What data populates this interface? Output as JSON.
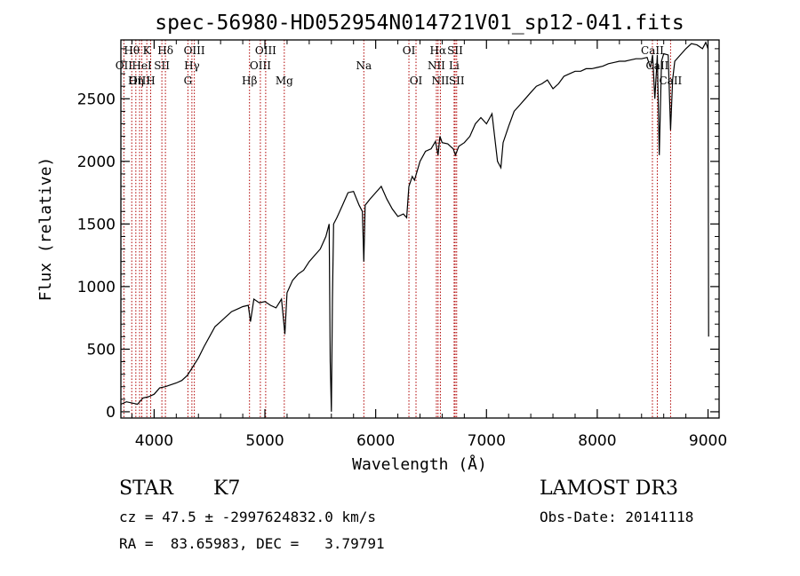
{
  "chart_data": {
    "type": "line",
    "title": "spec-56980-HD052954N014721V01_sp12-041.fits",
    "xlabel": "Wavelength (Å)",
    "ylabel": "Flux (relative)",
    "xlim": [
      3700,
      9100
    ],
    "ylim": [
      -50,
      2970
    ],
    "x_ticks": [
      4000,
      5000,
      6000,
      7000,
      8000,
      9000
    ],
    "y_ticks": [
      0,
      500,
      1000,
      1500,
      2000,
      2500
    ],
    "grid": false,
    "series": [
      {
        "x": [
          3700,
          3750,
          3800,
          3850,
          3900,
          3950,
          4000,
          4050,
          4100,
          4150,
          4200,
          4250,
          4300,
          4350,
          4400,
          4450,
          4500,
          4550,
          4600,
          4650,
          4700,
          4750,
          4800,
          4850,
          4870,
          4900,
          4950,
          5000,
          5050,
          5100,
          5150,
          5180,
          5200,
          5250,
          5300,
          5350,
          5400,
          5450,
          5500,
          5550,
          5580,
          5590,
          5600,
          5610,
          5620,
          5650,
          5700,
          5750,
          5800,
          5850,
          5880,
          5893,
          5905,
          5950,
          6000,
          6050,
          6100,
          6150,
          6200,
          6250,
          6280,
          6300,
          6330,
          6350,
          6400,
          6450,
          6500,
          6540,
          6563,
          6580,
          6600,
          6650,
          6700,
          6720,
          6750,
          6800,
          6850,
          6900,
          6950,
          7000,
          7050,
          7100,
          7130,
          7150,
          7200,
          7250,
          7300,
          7350,
          7400,
          7450,
          7500,
          7550,
          7600,
          7650,
          7700,
          7750,
          7800,
          7850,
          7900,
          7950,
          8000,
          8050,
          8100,
          8150,
          8200,
          8250,
          8300,
          8350,
          8400,
          8450,
          8480,
          8500,
          8520,
          8542,
          8560,
          8580,
          8600,
          8640,
          8662,
          8680,
          8700,
          8750,
          8800,
          8850,
          8900,
          8950,
          8980,
          9000,
          9005
        ],
        "y": [
          60,
          80,
          70,
          60,
          110,
          120,
          140,
          190,
          200,
          215,
          230,
          250,
          290,
          360,
          430,
          520,
          600,
          680,
          720,
          760,
          800,
          820,
          840,
          850,
          720,
          900,
          870,
          880,
          850,
          830,
          900,
          620,
          950,
          1050,
          1100,
          1130,
          1200,
          1250,
          1300,
          1400,
          1500,
          400,
          0,
          900,
          1500,
          1550,
          1650,
          1750,
          1760,
          1650,
          1600,
          1200,
          1650,
          1700,
          1750,
          1800,
          1700,
          1620,
          1560,
          1580,
          1550,
          1800,
          1880,
          1850,
          2000,
          2080,
          2100,
          2160,
          2050,
          2200,
          2150,
          2140,
          2100,
          2050,
          2120,
          2150,
          2200,
          2300,
          2350,
          2300,
          2380,
          2000,
          1950,
          2150,
          2280,
          2400,
          2450,
          2500,
          2550,
          2600,
          2620,
          2650,
          2580,
          2620,
          2680,
          2700,
          2720,
          2720,
          2740,
          2740,
          2750,
          2760,
          2780,
          2790,
          2800,
          2800,
          2810,
          2820,
          2820,
          2830,
          2750,
          2850,
          2500,
          2850,
          2050,
          2800,
          2860,
          2850,
          2250,
          2650,
          2800,
          2850,
          2900,
          2940,
          2930,
          2900,
          2950,
          2900,
          600
        ]
      }
    ],
    "lines": [
      {
        "label": "Hθ",
        "x": 3798,
        "row": 1
      },
      {
        "label": "OII",
        "x": 3727,
        "row": 2
      },
      {
        "label": "OIII",
        "x": 3869,
        "row": 3
      },
      {
        "label": "K",
        "x": 3934,
        "row": 1
      },
      {
        "label": "HeI",
        "x": 3889,
        "row": 2
      },
      {
        "label": "Hη",
        "x": 3835,
        "row": 3
      },
      {
        "label": "SII",
        "x": 4070,
        "row": 2
      },
      {
        "label": "H",
        "x": 3969,
        "row": 3
      },
      {
        "label": "Hδ",
        "x": 4102,
        "row": 1
      },
      {
        "label": "OIII",
        "x": 4363,
        "row": 1
      },
      {
        "label": "Hγ",
        "x": 4341,
        "row": 2
      },
      {
        "label": "G",
        "x": 4305,
        "row": 3
      },
      {
        "label": "OIII",
        "x": 5007,
        "row": 1
      },
      {
        "label": "OIII",
        "x": 4959,
        "row": 2
      },
      {
        "label": "Hβ",
        "x": 4861,
        "row": 3
      },
      {
        "label": "Mg",
        "x": 5175,
        "row": 3
      },
      {
        "label": "Na",
        "x": 5893,
        "row": 2
      },
      {
        "label": "OI",
        "x": 6300,
        "row": 1
      },
      {
        "label": "OI",
        "x": 6364,
        "row": 3
      },
      {
        "label": "Hα",
        "x": 6563,
        "row": 1
      },
      {
        "label": "NII",
        "x": 6548,
        "row": 2
      },
      {
        "label": "NII",
        "x": 6584,
        "row": 3
      },
      {
        "label": "SII",
        "x": 6717,
        "row": 1
      },
      {
        "label": "Li",
        "x": 6708,
        "row": 2
      },
      {
        "label": "SII",
        "x": 6731,
        "row": 3
      },
      {
        "label": "CaII",
        "x": 8498,
        "row": 1
      },
      {
        "label": "CaII",
        "x": 8542,
        "row": 2
      },
      {
        "label": "CaII",
        "x": 8662,
        "row": 3
      }
    ]
  },
  "info": {
    "object_class": "STAR",
    "subclass": "K7",
    "survey": "LAMOST DR3",
    "cz": "cz = 47.5 ± -2997624832.0 km/s",
    "obs_date": "Obs-Date: 20141118",
    "radec": "RA =  83.65983, DEC =   3.79791"
  },
  "colors": {
    "line_marker": "#b00000",
    "spectrum": "#000000",
    "axes": "#000000"
  }
}
